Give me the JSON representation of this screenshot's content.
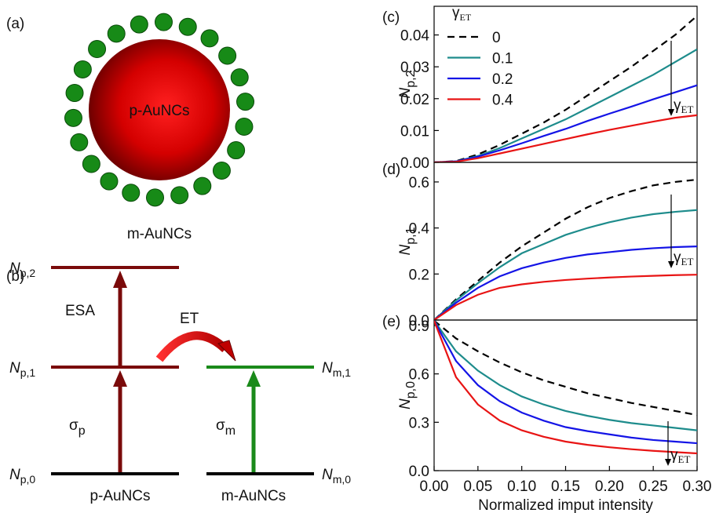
{
  "diagram": {
    "panel_a": {
      "label": "(a)",
      "core": "p-AuNCs",
      "shell": "m-AuNCs"
    },
    "panel_b": {
      "label": "(b)",
      "levels": [
        {
          "symbol": "N",
          "sub": "p,2"
        },
        {
          "symbol": "N",
          "sub": "p,1"
        },
        {
          "symbol": "N",
          "sub": "p,0"
        },
        {
          "symbol": "N",
          "sub": "m,1"
        },
        {
          "symbol": "N",
          "sub": "m,0"
        }
      ],
      "esa": "ESA",
      "et": "ET",
      "sigma_p": {
        "symbol": "σ",
        "sub": "p"
      },
      "sigma_m": {
        "symbol": "σ",
        "sub": "m"
      },
      "species": [
        "p-AuNCs",
        "m-AuNCs"
      ]
    }
  },
  "chart_data": [
    {
      "type": "line",
      "label": "(c)",
      "ylabel": "N",
      "ylabel_sub": "p,2",
      "legend_title": "γ",
      "legend_title_sub": "ET",
      "annotation": "γ",
      "annotation_sub": "ET",
      "x": [
        0,
        0.025,
        0.05,
        0.075,
        0.1,
        0.125,
        0.15,
        0.175,
        0.2,
        0.225,
        0.25,
        0.275,
        0.3
      ],
      "xlim": [
        0,
        0.3
      ],
      "ylim": [
        0,
        0.049
      ],
      "yticks": [
        {
          "value": 0,
          "label": "0.00"
        },
        0.01,
        0.02,
        0.03,
        0.04
      ],
      "series": [
        {
          "name": "0",
          "color": "#000000",
          "dash": true,
          "values": [
            0,
            0.0004,
            0.0025,
            0.0055,
            0.009,
            0.0125,
            0.0165,
            0.021,
            0.0255,
            0.03,
            0.035,
            0.04,
            0.046
          ]
        },
        {
          "name": "0.1",
          "color": "#1e8c8c",
          "dash": false,
          "values": [
            0,
            0.0003,
            0.002,
            0.0045,
            0.0075,
            0.0105,
            0.0135,
            0.017,
            0.0205,
            0.024,
            0.0275,
            0.0315,
            0.0355
          ]
        },
        {
          "name": "0.2",
          "color": "#1414e6",
          "dash": false,
          "values": [
            0,
            0.0003,
            0.0018,
            0.0038,
            0.006,
            0.0083,
            0.0105,
            0.013,
            0.0153,
            0.0175,
            0.0198,
            0.022,
            0.0242
          ]
        },
        {
          "name": "0.4",
          "color": "#e81414",
          "dash": false,
          "values": [
            0,
            0.0002,
            0.0013,
            0.0028,
            0.0043,
            0.0058,
            0.0073,
            0.0088,
            0.0102,
            0.0115,
            0.0128,
            0.014,
            0.0148
          ]
        }
      ]
    },
    {
      "type": "line",
      "label": "(d)",
      "ylabel": "N",
      "ylabel_sub": "p,1",
      "annotation": "γ",
      "annotation_sub": "ET",
      "x": [
        0,
        0.025,
        0.05,
        0.075,
        0.1,
        0.125,
        0.15,
        0.175,
        0.2,
        0.225,
        0.25,
        0.275,
        0.3
      ],
      "xlim": [
        0,
        0.3
      ],
      "ylim": [
        0,
        0.685
      ],
      "yticks": [
        {
          "value": 0,
          "label": "0.0"
        },
        0.2,
        0.4,
        0.6
      ],
      "series": [
        {
          "color": "#000000",
          "dash": true,
          "values": [
            0,
            0.09,
            0.17,
            0.25,
            0.32,
            0.38,
            0.44,
            0.49,
            0.53,
            0.56,
            0.585,
            0.6,
            0.61
          ]
        },
        {
          "color": "#1e8c8c",
          "dash": false,
          "values": [
            0,
            0.085,
            0.16,
            0.23,
            0.29,
            0.33,
            0.37,
            0.4,
            0.425,
            0.445,
            0.46,
            0.47,
            0.478
          ]
        },
        {
          "color": "#1414e6",
          "dash": false,
          "values": [
            0,
            0.075,
            0.14,
            0.19,
            0.225,
            0.25,
            0.27,
            0.285,
            0.295,
            0.305,
            0.312,
            0.317,
            0.32
          ]
        },
        {
          "color": "#e81414",
          "dash": false,
          "values": [
            0,
            0.065,
            0.11,
            0.14,
            0.155,
            0.166,
            0.174,
            0.18,
            0.185,
            0.189,
            0.192,
            0.195,
            0.197
          ]
        }
      ]
    },
    {
      "type": "line",
      "label": "(e)",
      "ylabel": "N",
      "ylabel_sub": "p,0",
      "xlabel": "Normalized imput intensity",
      "annotation": "γ",
      "annotation_sub": "ET",
      "x": [
        0,
        0.025,
        0.05,
        0.075,
        0.1,
        0.125,
        0.15,
        0.175,
        0.2,
        0.225,
        0.25,
        0.275,
        0.3
      ],
      "xlim": [
        0,
        0.3
      ],
      "xticks": [
        {
          "value": 0,
          "label": "0.00"
        },
        0.05,
        {
          "value": 0.1,
          "label": "0.10"
        },
        0.15,
        {
          "value": 0.2,
          "label": "0.20"
        },
        0.25,
        {
          "value": 0.3,
          "label": "0.30"
        }
      ],
      "ylim": [
        0,
        0.934
      ],
      "yticks": [
        {
          "value": 0,
          "label": "0.0"
        },
        0.3,
        0.6,
        0.9
      ],
      "series": [
        {
          "color": "#000000",
          "dash": true,
          "values": [
            0.93,
            0.82,
            0.74,
            0.67,
            0.61,
            0.56,
            0.52,
            0.48,
            0.45,
            0.42,
            0.395,
            0.37,
            0.345
          ]
        },
        {
          "color": "#1e8c8c",
          "dash": false,
          "values": [
            0.93,
            0.74,
            0.62,
            0.53,
            0.46,
            0.41,
            0.37,
            0.34,
            0.315,
            0.295,
            0.28,
            0.265,
            0.25
          ]
        },
        {
          "color": "#1414e6",
          "dash": false,
          "values": [
            0.93,
            0.68,
            0.53,
            0.43,
            0.36,
            0.31,
            0.27,
            0.245,
            0.225,
            0.205,
            0.19,
            0.18,
            0.17
          ]
        },
        {
          "color": "#e81414",
          "dash": false,
          "values": [
            0.93,
            0.58,
            0.41,
            0.31,
            0.25,
            0.21,
            0.18,
            0.16,
            0.145,
            0.133,
            0.123,
            0.115,
            0.107
          ]
        }
      ]
    }
  ]
}
